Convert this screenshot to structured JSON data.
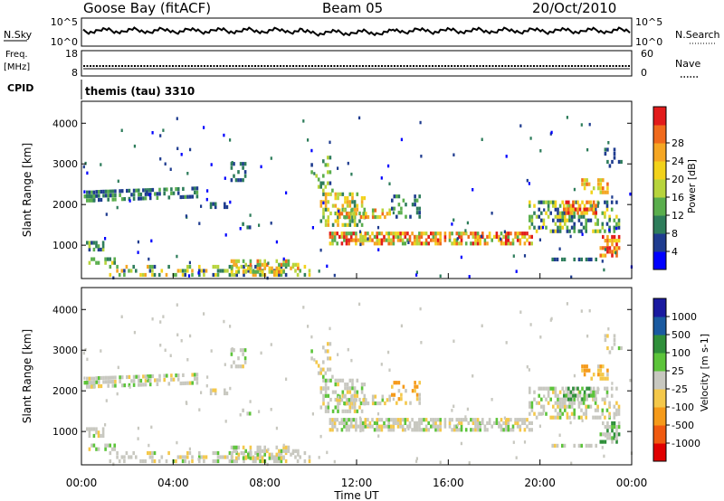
{
  "header": {
    "station": "Goose Bay (fitACF)",
    "beam": "Beam 05",
    "date": "20/Oct/2010"
  },
  "noise": {
    "left_label": "N.Sky",
    "left_ticks": [
      "10^5",
      "10^0"
    ],
    "right_label": "N.Search",
    "right_ticks": [
      "10^5",
      "10^0"
    ]
  },
  "freq": {
    "label_line1": "Freq.",
    "label_line2": "[MHz]",
    "ticks": [
      "18",
      "8"
    ],
    "right_label": "Nave",
    "right_ticks": [
      "60",
      "0"
    ]
  },
  "cpid": {
    "label": "CPID",
    "value": "themis (tau) 3310"
  },
  "colors": {
    "power": [
      "#0000ff",
      "#1f3c8f",
      "#2e7d5b",
      "#5aae4d",
      "#b7d43c",
      "#f2d21b",
      "#f5a623",
      "#f06a1c",
      "#e21b1b"
    ],
    "velocity": [
      "#e00000",
      "#f05a10",
      "#f59a1a",
      "#f4c84a",
      "#c8c8c0",
      "#5cc43a",
      "#2f8f3a",
      "#1a5aa0",
      "#1a1aa0"
    ]
  },
  "chart_data": [
    {
      "type": "heatmap",
      "title": "",
      "xlabel": "Time UT",
      "ylabel": "Slant Range [km]",
      "x_ticks": [
        "00:00",
        "04:00",
        "08:00",
        "12:00",
        "16:00",
        "20:00",
        "00:00"
      ],
      "y_ticks": [
        "1000",
        "2000",
        "3000",
        "4000"
      ],
      "colorbar": {
        "label": "Power [dB]",
        "ticks": [
          "4",
          "8",
          "12",
          "16",
          "20",
          "24",
          "28"
        ]
      }
    },
    {
      "type": "heatmap",
      "title": "",
      "xlabel": "Time UT",
      "ylabel": "Slant Range [km]",
      "x_ticks": [
        "00:00",
        "04:00",
        "08:00",
        "12:00",
        "16:00",
        "20:00",
        "00:00"
      ],
      "y_ticks": [
        "1000",
        "2000",
        "3000",
        "4000"
      ],
      "colorbar": {
        "label": "Velocity [m s-1]",
        "ticks": [
          "1000",
          "500",
          "100",
          "25",
          "-25",
          "-100",
          "-500",
          "-1000"
        ]
      }
    }
  ]
}
